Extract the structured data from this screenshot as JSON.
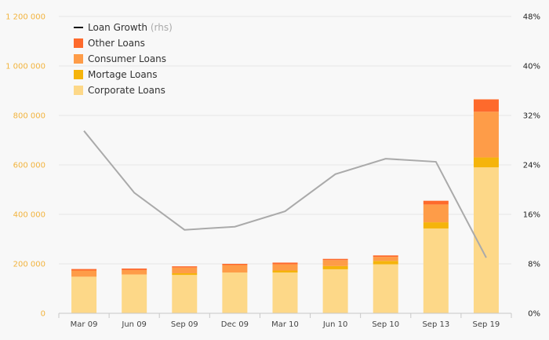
{
  "chart_data": {
    "type": "bar",
    "stacked": true,
    "categories": [
      "Mar 09",
      "Jun 09",
      "Sep 09",
      "Dec 09",
      "Mar 10",
      "Jun 10",
      "Sep 10",
      "Sep 13",
      "Sep 19"
    ],
    "series": [
      {
        "name": "Corporate Loans",
        "color": "#fdd888",
        "values": [
          148000,
          157000,
          155000,
          165000,
          165000,
          178000,
          198000,
          343000,
          590000
        ]
      },
      {
        "name": "Mortage Loans",
        "color": "#f5b40b",
        "values": [
          0,
          0,
          7000,
          0,
          8000,
          13000,
          14000,
          25000,
          40000
        ]
      },
      {
        "name": "Consumer Loans",
        "color": "#fe9c48",
        "values": [
          25000,
          18000,
          23000,
          30000,
          25000,
          24000,
          16000,
          72000,
          185000
        ]
      },
      {
        "name": "Other Loans",
        "color": "#fe6a2c",
        "values": [
          6000,
          6000,
          5000,
          5000,
          7000,
          5000,
          6000,
          15000,
          50000
        ]
      }
    ],
    "line": {
      "name": "Loan Growth",
      "name_suffix": "(rhs)",
      "color": "#aaaaaa",
      "values": [
        29.5,
        19.5,
        13.5,
        14,
        16.5,
        22.5,
        25,
        24.5,
        9
      ]
    },
    "left_axis": {
      "min": 0,
      "max": 1200000,
      "ticks": [
        "0",
        "200 000",
        "400 000",
        "600 000",
        "800 000",
        "1 000 000",
        "1 200 000"
      ]
    },
    "right_axis": {
      "min": 0,
      "max": 48,
      "ticks": [
        "0%",
        "8%",
        "16%",
        "24%",
        "32%",
        "40%",
        "48%"
      ]
    },
    "legend_placement": "top-left",
    "grid": "horizontal"
  }
}
